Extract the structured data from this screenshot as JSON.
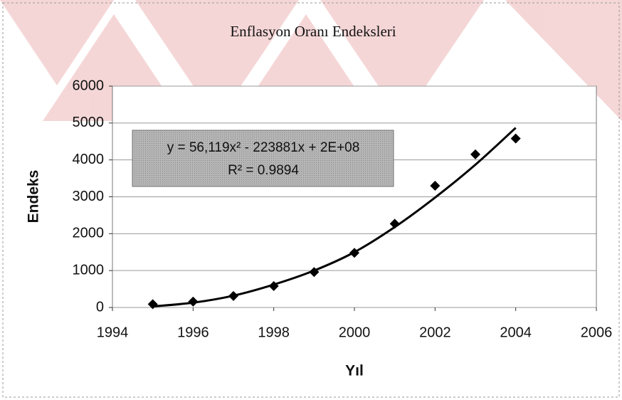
{
  "chart_data": {
    "type": "scatter",
    "title": "Enflasyon Oranı Endeksleri",
    "xlabel": "Yıl",
    "ylabel": "Endeks",
    "x": [
      1995,
      1996,
      1997,
      1998,
      1999,
      2000,
      2001,
      2002,
      2003,
      2004
    ],
    "values": [
      90,
      160,
      310,
      580,
      960,
      1480,
      2270,
      3300,
      4150,
      4580
    ],
    "color": "#000000",
    "trendline": {
      "x": [
        1995,
        1996,
        1997,
        1998,
        1999,
        2000,
        2001,
        2002,
        2003,
        2004
      ],
      "values": [
        30,
        130,
        320,
        620,
        1000,
        1500,
        2180,
        2980,
        3870,
        4870
      ],
      "color": "#000000"
    },
    "annotations": [
      "y = 56,119x² - 223881x + 2E+08",
      "R² = 0.9894"
    ],
    "xlim": [
      1994,
      2006
    ],
    "xticks": [
      1994,
      1996,
      1998,
      2000,
      2002,
      2004,
      2006
    ],
    "ylim": [
      0,
      6000
    ],
    "yticks": [
      0,
      1000,
      2000,
      3000,
      4000,
      5000,
      6000
    ],
    "grid": true
  }
}
